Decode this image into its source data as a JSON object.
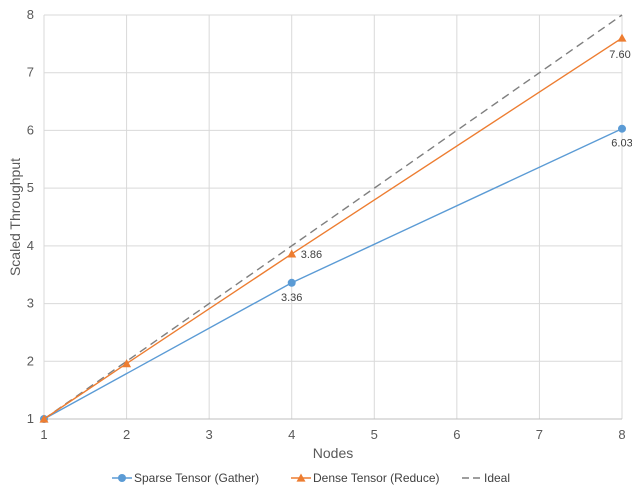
{
  "chart_data": {
    "type": "line",
    "xlabel": "Nodes",
    "ylabel": "Scaled Throughput",
    "xlim": [
      1,
      8
    ],
    "ylim": [
      1,
      8
    ],
    "x_ticks": [
      "1",
      "2",
      "3",
      "4",
      "5",
      "6",
      "7",
      "8"
    ],
    "y_ticks": [
      "1",
      "2",
      "3",
      "4",
      "5",
      "6",
      "7",
      "8"
    ],
    "grid": "vertical and horizontal",
    "legend_position": "bottom",
    "series": [
      {
        "name": "Sparse Tensor (Gather)",
        "color": "#5B9BD5",
        "marker": "circle",
        "dash": "solid",
        "points": [
          [
            1,
            1.0
          ],
          [
            4,
            3.36
          ],
          [
            8,
            6.03
          ]
        ],
        "labels": [
          null,
          "3.36",
          "6.03"
        ]
      },
      {
        "name": "Dense Tensor (Reduce)",
        "color": "#ED7D31",
        "marker": "triangle",
        "dash": "solid",
        "points": [
          [
            1,
            1.0
          ],
          [
            2,
            1.96
          ],
          [
            4,
            3.86
          ],
          [
            8,
            7.6
          ]
        ],
        "labels": [
          null,
          null,
          "3.86",
          "7.60"
        ]
      },
      {
        "name": "Ideal",
        "color": "#7F7F7F",
        "marker": "none",
        "dash": "dashed",
        "points": [
          [
            1,
            1
          ],
          [
            2,
            2
          ],
          [
            4,
            4
          ],
          [
            8,
            8
          ]
        ],
        "labels": [
          null,
          null,
          null,
          null
        ]
      }
    ]
  }
}
